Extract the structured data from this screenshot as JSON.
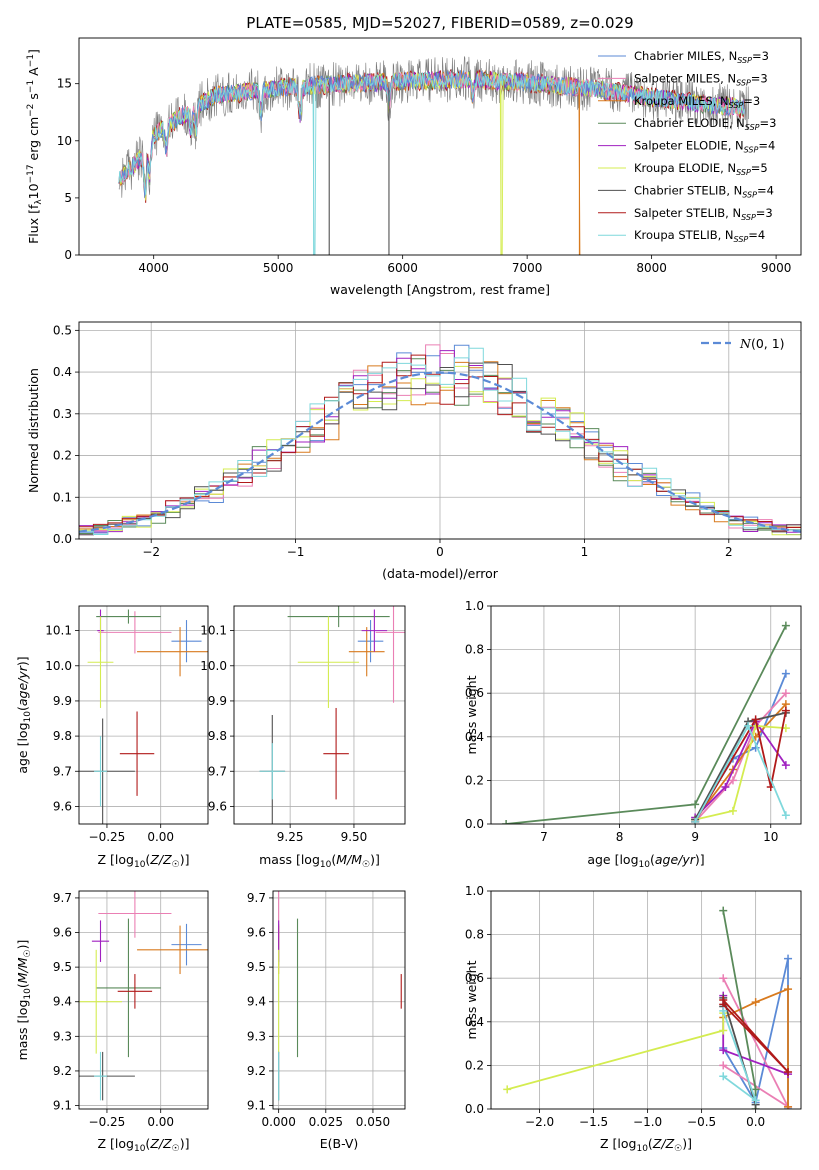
{
  "title": "PLATE=0585, MJD=52027, FIBERID=0589, z=0.029",
  "colors": {
    "Chabrier MILES": "#5b8ad6",
    "Salpeter MILES": "#ea7fb4",
    "Kroupa MILES": "#d87a1e",
    "Chabrier ELODIE": "#5a8a5a",
    "Salpeter ELODIE": "#a020c0",
    "Kroupa ELODIE": "#d4ec50",
    "Chabrier STELIB": "#505050",
    "Salpeter STELIB": "#b01a1a",
    "Kroupa STELIB": "#7fd8dc"
  },
  "chart_data": [
    {
      "id": "spectrum",
      "type": "line",
      "xlabel": "wavelength [Angstrom, rest frame]",
      "ylabel": "Flux [f_λ10^-17 erg cm^-2 s^-1 A^-1]",
      "xlim": [
        3400,
        9200
      ],
      "ylim": [
        0,
        19
      ],
      "xticks": [
        4000,
        5000,
        6000,
        7000,
        8000,
        9000
      ],
      "yticks": [
        0,
        5,
        10,
        15
      ],
      "grid": false,
      "legend_position": "top-right",
      "legend": [
        {
          "label": "Chabrier MILES, N_SSP=3",
          "base": "Chabrier MILES, N",
          "sub": "SSP",
          "tail": "=3",
          "color": "#5b8ad6"
        },
        {
          "label": "Salpeter MILES, N_SSP=3",
          "base": "Salpeter MILES, N",
          "sub": "SSP",
          "tail": "=3",
          "color": "#ea7fb4"
        },
        {
          "label": "Kroupa MILES, N_SSP=3",
          "base": "Kroupa MILES, N",
          "sub": "SSP",
          "tail": "=3",
          "color": "#d87a1e"
        },
        {
          "label": "Chabrier ELODIE, N_SSP=3",
          "base": "Chabrier ELODIE, N",
          "sub": "SSP",
          "tail": "=3",
          "color": "#5a8a5a"
        },
        {
          "label": "Salpeter ELODIE, N_SSP=4",
          "base": "Salpeter ELODIE, N",
          "sub": "SSP",
          "tail": "=4",
          "color": "#a020c0"
        },
        {
          "label": "Kroupa ELODIE, N_SSP=5",
          "base": "Kroupa ELODIE, N",
          "sub": "SSP",
          "tail": "=5",
          "color": "#d4ec50"
        },
        {
          "label": "Chabrier STELIB, N_SSP=4",
          "base": "Chabrier STELIB, N",
          "sub": "SSP",
          "tail": "=4",
          "color": "#505050"
        },
        {
          "label": "Salpeter STELIB, N_SSP=3",
          "base": "Salpeter STELIB, N",
          "sub": "SSP",
          "tail": "=3",
          "color": "#b01a1a"
        },
        {
          "label": "Kroupa STELIB, N_SSP=4",
          "base": "Kroupa STELIB, N",
          "sub": "SSP",
          "tail": "=4",
          "color": "#7fd8dc"
        }
      ],
      "continuum": {
        "x": [
          3700,
          3900,
          4000,
          4200,
          4500,
          5000,
          5500,
          6000,
          6500,
          7000,
          7500,
          8000,
          8500,
          8800
        ],
        "y": [
          6.5,
          8.5,
          10.5,
          12.0,
          14.0,
          14.6,
          15.0,
          15.2,
          15.4,
          15.1,
          14.6,
          13.8,
          13.1,
          12.8
        ]
      },
      "dips": [
        [
          3933,
          4
        ],
        [
          3968,
          3
        ],
        [
          4102,
          2
        ],
        [
          4300,
          2
        ],
        [
          4340,
          2
        ],
        [
          4861,
          2
        ],
        [
          5175,
          2.5
        ],
        [
          5890,
          2
        ],
        [
          6563,
          1.5
        ]
      ]
    },
    {
      "id": "residuals",
      "type": "histogram",
      "xlabel": "(data-model)/error",
      "ylabel": "Normed distribution",
      "xlim": [
        -2.5,
        2.5
      ],
      "ylim": [
        0,
        0.52
      ],
      "xticks": [
        -2,
        -1,
        0,
        1,
        2
      ],
      "yticks": [
        0.0,
        0.1,
        0.2,
        0.3,
        0.4,
        0.5
      ],
      "grid": true,
      "legend_position": "top-right",
      "reference_curve": {
        "label": "N(0,1)",
        "type": "gaussian",
        "mean": 0,
        "sigma": 1,
        "color": "#5b8ad6"
      },
      "bin_width": 0.1
    },
    {
      "id": "age-vs-Z",
      "type": "errorbar",
      "xlabel": "Z [log10(Z/Z☉)]",
      "ylabel": "age [log10(age/yr)]",
      "xlim": [
        -0.38,
        0.22
      ],
      "ylim": [
        9.55,
        10.17
      ],
      "xticks": [
        -0.25,
        0.0
      ],
      "yticks": [
        9.6,
        9.7,
        9.8,
        9.9,
        10.0,
        10.1
      ],
      "grid": true,
      "series": [
        {
          "color": "#5b8ad6",
          "x": 0.12,
          "y": 10.07,
          "xerr": 0.07,
          "yerr": 0.06
        },
        {
          "color": "#ea7fb4",
          "x": -0.12,
          "y": 10.095,
          "xerr": 0.17,
          "yerr": 0.06
        },
        {
          "color": "#d87a1e",
          "x": 0.09,
          "y": 10.04,
          "xerr": 0.2,
          "yerr": 0.07
        },
        {
          "color": "#5a8a5a",
          "x": -0.15,
          "y": 10.14,
          "xerr": 0.15,
          "yerr": 0.02
        },
        {
          "color": "#a020c0",
          "x": -0.28,
          "y": 10.1,
          "xerr": 0.015,
          "yerr": 0.06
        },
        {
          "color": "#d4ec50",
          "x": -0.28,
          "y": 10.01,
          "xerr": 0.06,
          "yerr": 0.13
        },
        {
          "color": "#505050",
          "x": -0.27,
          "y": 9.7,
          "xerr": 0.15,
          "yerr": 0.15
        },
        {
          "color": "#b01a1a",
          "x": -0.11,
          "y": 9.75,
          "xerr": 0.08,
          "yerr": 0.12
        },
        {
          "color": "#7fd8dc",
          "x": -0.28,
          "y": 9.7,
          "xerr": 0.03,
          "yerr": 0.1
        }
      ]
    },
    {
      "id": "age-vs-mass",
      "type": "errorbar",
      "xlabel": "mass [log10(M/M☉)]",
      "ylabel": "",
      "xlim": [
        9.03,
        9.7
      ],
      "ylim": [
        9.55,
        10.17
      ],
      "xticks": [
        9.25,
        9.5
      ],
      "yticks": [
        9.6,
        9.7,
        9.8,
        9.9,
        10.0,
        10.1
      ],
      "grid": true,
      "series": [
        {
          "color": "#5b8ad6",
          "x": 9.565,
          "y": 10.07,
          "xerr": 0.05,
          "yerr": 0.06
        },
        {
          "color": "#ea7fb4",
          "x": 9.655,
          "y": 10.095,
          "xerr": 0.07,
          "yerr": 0.2
        },
        {
          "color": "#d87a1e",
          "x": 9.55,
          "y": 10.04,
          "xerr": 0.07,
          "yerr": 0.07
        },
        {
          "color": "#5a8a5a",
          "x": 9.44,
          "y": 10.14,
          "xerr": 0.2,
          "yerr": 0.03
        },
        {
          "color": "#a020c0",
          "x": 9.58,
          "y": 10.1,
          "xerr": 0.05,
          "yerr": 0.06
        },
        {
          "color": "#d4ec50",
          "x": 9.4,
          "y": 10.01,
          "xerr": 0.12,
          "yerr": 0.13
        },
        {
          "color": "#505050",
          "x": 9.18,
          "y": 9.7,
          "xerr": 0.05,
          "yerr": 0.16
        },
        {
          "color": "#b01a1a",
          "x": 9.43,
          "y": 9.75,
          "xerr": 0.05,
          "yerr": 0.13
        },
        {
          "color": "#7fd8dc",
          "x": 9.18,
          "y": 9.7,
          "xerr": 0.05,
          "yerr": 0.08
        }
      ]
    },
    {
      "id": "weight-vs-age",
      "type": "line",
      "xlabel": "age [log10(age/yr)]",
      "ylabel": "mass weight",
      "xlim": [
        6.3,
        10.4
      ],
      "ylim": [
        0,
        1.0
      ],
      "xticks": [
        7,
        8,
        9,
        10
      ],
      "yticks": [
        0.0,
        0.2,
        0.4,
        0.6,
        0.8,
        1.0
      ],
      "grid": true,
      "series": [
        {
          "color": "#5b8ad6",
          "x": [
            9.0,
            9.5,
            9.8,
            10.2
          ],
          "y": [
            0.02,
            0.3,
            0.35,
            0.69
          ]
        },
        {
          "color": "#ea7fb4",
          "x": [
            9.0,
            9.5,
            9.8,
            10.2
          ],
          "y": [
            0.01,
            0.2,
            0.45,
            0.6
          ]
        },
        {
          "color": "#d87a1e",
          "x": [
            9.0,
            9.5,
            9.8,
            10.2
          ],
          "y": [
            0.02,
            0.25,
            0.4,
            0.55
          ]
        },
        {
          "color": "#5a8a5a",
          "x": [
            6.5,
            9.0,
            10.2
          ],
          "y": [
            0.0,
            0.09,
            0.91
          ]
        },
        {
          "color": "#a020c0",
          "x": [
            9.0,
            9.4,
            9.8,
            10.2
          ],
          "y": [
            0.03,
            0.17,
            0.47,
            0.27
          ]
        },
        {
          "color": "#d4ec50",
          "x": [
            9.0,
            9.5,
            9.8,
            10.2
          ],
          "y": [
            0.02,
            0.06,
            0.45,
            0.44
          ]
        },
        {
          "color": "#505050",
          "x": [
            9.0,
            9.7,
            10.2
          ],
          "y": [
            0.02,
            0.47,
            0.51
          ]
        },
        {
          "color": "#b01a1a",
          "x": [
            9.0,
            9.8,
            10.0,
            10.2
          ],
          "y": [
            0.01,
            0.48,
            0.17,
            0.52
          ]
        },
        {
          "color": "#7fd8dc",
          "x": [
            9.0,
            9.7,
            10.2
          ],
          "y": [
            0.01,
            0.45,
            0.04
          ]
        }
      ]
    },
    {
      "id": "mass-vs-Z",
      "type": "errorbar",
      "xlabel": "Z [log10(Z/Z☉)]",
      "ylabel": "mass [log10(M/M☉)]",
      "xlim": [
        -0.38,
        0.22
      ],
      "ylim": [
        9.09,
        9.72
      ],
      "xticks": [
        -0.25,
        0.0
      ],
      "yticks": [
        9.1,
        9.2,
        9.3,
        9.4,
        9.5,
        9.6,
        9.7
      ],
      "grid": true,
      "series": [
        {
          "color": "#5b8ad6",
          "x": 0.12,
          "y": 9.565,
          "xerr": 0.07,
          "yerr": 0.06
        },
        {
          "color": "#ea7fb4",
          "x": -0.12,
          "y": 9.655,
          "xerr": 0.17,
          "yerr": 0.07
        },
        {
          "color": "#d87a1e",
          "x": 0.09,
          "y": 9.55,
          "xerr": 0.2,
          "yerr": 0.07
        },
        {
          "color": "#5a8a5a",
          "x": -0.15,
          "y": 9.44,
          "xerr": 0.15,
          "yerr": 0.2
        },
        {
          "color": "#a020c0",
          "x": -0.28,
          "y": 9.575,
          "xerr": 0.04,
          "yerr": 0.06
        },
        {
          "color": "#d4ec50",
          "x": -0.3,
          "y": 9.4,
          "xerr": 0.12,
          "yerr": 0.15
        },
        {
          "color": "#505050",
          "x": -0.27,
          "y": 9.185,
          "xerr": 0.15,
          "yerr": 0.07
        },
        {
          "color": "#b01a1a",
          "x": -0.12,
          "y": 9.43,
          "xerr": 0.08,
          "yerr": 0.05
        },
        {
          "color": "#7fd8dc",
          "x": -0.28,
          "y": 9.185,
          "xerr": 0.03,
          "yerr": 0.07
        }
      ]
    },
    {
      "id": "mass-vs-ebv",
      "type": "errorbar",
      "xlabel": "E(B-V)",
      "ylabel": "",
      "xlim": [
        -0.003,
        0.067
      ],
      "ylim": [
        9.09,
        9.72
      ],
      "xticks": [
        0.0,
        0.025,
        0.05
      ],
      "yticks": [
        9.1,
        9.2,
        9.3,
        9.4,
        9.5,
        9.6,
        9.7
      ],
      "grid": true,
      "series": [
        {
          "color": "#5b8ad6",
          "x": 0.0,
          "y": 9.565,
          "xerr": 0.0,
          "yerr": 0.06
        },
        {
          "color": "#ea7fb4",
          "x": 0.0,
          "y": 9.655,
          "xerr": 0.0,
          "yerr": 0.07
        },
        {
          "color": "#d87a1e",
          "x": 0.0,
          "y": 9.55,
          "xerr": 0.0,
          "yerr": 0.07
        },
        {
          "color": "#5a8a5a",
          "x": 0.01,
          "y": 9.44,
          "xerr": 0.0,
          "yerr": 0.2
        },
        {
          "color": "#a020c0",
          "x": 0.0,
          "y": 9.575,
          "xerr": 0.0,
          "yerr": 0.06
        },
        {
          "color": "#d4ec50",
          "x": 0.0,
          "y": 9.4,
          "xerr": 0.0,
          "yerr": 0.15
        },
        {
          "color": "#505050",
          "x": 0.0,
          "y": 9.185,
          "xerr": 0.0,
          "yerr": 0.07
        },
        {
          "color": "#b01a1a",
          "x": 0.065,
          "y": 9.43,
          "xerr": 0.0,
          "yerr": 0.05
        },
        {
          "color": "#7fd8dc",
          "x": 0.0,
          "y": 9.185,
          "xerr": 0.0,
          "yerr": 0.07
        }
      ]
    },
    {
      "id": "weight-vs-Z",
      "type": "line",
      "xlabel": "Z [log10(Z/Z☉)]",
      "ylabel": "mass weight",
      "xlim": [
        -2.45,
        0.42
      ],
      "ylim": [
        0,
        1.0
      ],
      "xticks": [
        -2.0,
        -1.5,
        -1.0,
        -0.5,
        0.0
      ],
      "yticks": [
        0.0,
        0.2,
        0.4,
        0.6,
        0.8,
        1.0
      ],
      "grid": true,
      "series": [
        {
          "color": "#5b8ad6",
          "x": [
            -0.3,
            0.0,
            0.3,
            0.3
          ],
          "y": [
            0.28,
            0.03,
            0.69,
            0.0
          ]
        },
        {
          "color": "#ea7fb4",
          "x": [
            -0.3,
            0.3,
            -0.3
          ],
          "y": [
            0.6,
            0.01,
            0.2
          ]
        },
        {
          "color": "#d87a1e",
          "x": [
            -0.3,
            0.0,
            0.3,
            0.3
          ],
          "y": [
            0.42,
            0.49,
            0.55,
            0.01
          ]
        },
        {
          "color": "#5a8a5a",
          "x": [
            -0.3,
            0.0,
            0.0
          ],
          "y": [
            0.91,
            0.09,
            0.0
          ]
        },
        {
          "color": "#a020c0",
          "x": [
            -0.3,
            -0.3,
            0.3
          ],
          "y": [
            0.52,
            0.27,
            0.16
          ]
        },
        {
          "color": "#d4ec50",
          "x": [
            -2.3,
            -0.3,
            -0.3
          ],
          "y": [
            0.09,
            0.36,
            0.44
          ]
        },
        {
          "color": "#505050",
          "x": [
            -0.3,
            -0.3,
            0.0
          ],
          "y": [
            0.47,
            0.51,
            0.02
          ]
        },
        {
          "color": "#b01a1a",
          "x": [
            -0.3,
            0.3,
            -0.3
          ],
          "y": [
            0.48,
            0.17,
            0.5
          ]
        },
        {
          "color": "#7fd8dc",
          "x": [
            -0.3,
            0.0,
            -0.3
          ],
          "y": [
            0.45,
            0.04,
            0.15
          ]
        }
      ]
    }
  ]
}
